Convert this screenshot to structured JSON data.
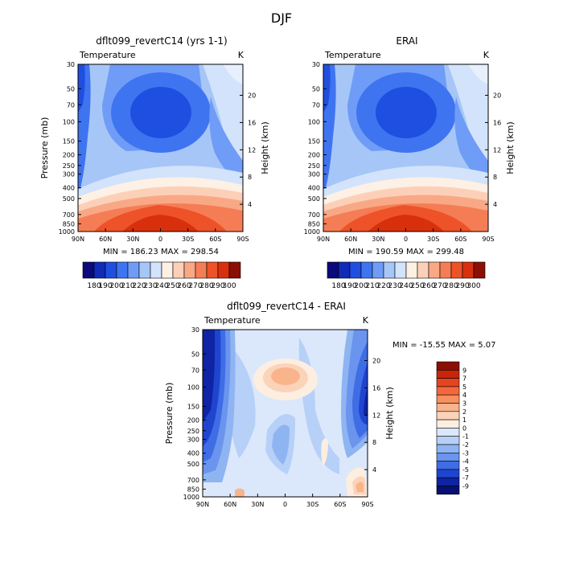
{
  "page": {
    "title": "DJF"
  },
  "chart_data": [
    {
      "type": "heatmap",
      "id": "model",
      "title": "dflt099_revertC14 (yrs 1-1)",
      "subtitle_left": "Temperature",
      "subtitle_right": "K",
      "xlabel": "",
      "ylabel": "Pressure (mb)",
      "ylabel_right": "Height (km)",
      "x_ticks": [
        "90N",
        "60N",
        "30N",
        "0",
        "30S",
        "60S",
        "90S"
      ],
      "y_ticks": [
        "30",
        "50",
        "70",
        "100",
        "150",
        "200",
        "250",
        "300",
        "400",
        "500",
        "700",
        "850",
        "1000"
      ],
      "y_ticks_right": [
        "20",
        "16",
        "12",
        "8",
        "4"
      ],
      "stats": "MIN = 186.23   MAX = 298.54",
      "min": 186.23,
      "max": 298.54,
      "colorbar": {
        "labels": [
          "180",
          "190",
          "200",
          "210",
          "220",
          "230",
          "240",
          "250",
          "260",
          "270",
          "280",
          "290",
          "300"
        ],
        "colors": [
          "#0a0a7a",
          "#0f2bb8",
          "#1f4fe0",
          "#3f74f0",
          "#6f9cf6",
          "#a6c6f8",
          "#d2e3fb",
          "#fdf0e4",
          "#fcd0b8",
          "#f9a886",
          "#f57d55",
          "#ee5228",
          "#d8300c",
          "#8b0f05"
        ]
      }
    },
    {
      "type": "heatmap",
      "id": "obs",
      "title": "ERAI",
      "subtitle_left": "Temperature",
      "subtitle_right": "K",
      "xlabel": "",
      "ylabel": "",
      "ylabel_right": "Height (km)",
      "x_ticks": [
        "90N",
        "60N",
        "30N",
        "0",
        "30S",
        "60S",
        "90S"
      ],
      "y_ticks": [
        "30",
        "50",
        "70",
        "100",
        "150",
        "200",
        "250",
        "300",
        "400",
        "500",
        "700",
        "850",
        "1000"
      ],
      "y_ticks_right": [
        "20",
        "16",
        "12",
        "8",
        "4"
      ],
      "stats": "MIN = 190.59   MAX = 299.48",
      "min": 190.59,
      "max": 299.48,
      "colorbar": {
        "labels": [
          "180",
          "190",
          "200",
          "210",
          "220",
          "230",
          "240",
          "250",
          "260",
          "270",
          "280",
          "290",
          "300"
        ],
        "colors": [
          "#0a0a7a",
          "#0f2bb8",
          "#1f4fe0",
          "#3f74f0",
          "#6f9cf6",
          "#a6c6f8",
          "#d2e3fb",
          "#fdf0e4",
          "#fcd0b8",
          "#f9a886",
          "#f57d55",
          "#ee5228",
          "#d8300c",
          "#8b0f05"
        ]
      }
    },
    {
      "type": "heatmap",
      "id": "diff",
      "title": "dflt099_revertC14 - ERAI",
      "subtitle_left": "Temperature",
      "subtitle_right": "K",
      "xlabel": "",
      "ylabel": "Pressure (mb)",
      "ylabel_right": "Height (km)",
      "x_ticks": [
        "90N",
        "60N",
        "30N",
        "0",
        "30S",
        "60S",
        "90S"
      ],
      "y_ticks": [
        "30",
        "50",
        "70",
        "100",
        "150",
        "200",
        "250",
        "300",
        "400",
        "500",
        "700",
        "850",
        "1000"
      ],
      "y_ticks_right": [
        "20",
        "16",
        "12",
        "8",
        "4"
      ],
      "stats": "MIN = -15.55   MAX =    5.07",
      "min": -15.55,
      "max": 5.07,
      "colorbar": {
        "labels": [
          "9",
          "7",
          "5",
          "4",
          "3",
          "2",
          "1",
          "0",
          "-1",
          "-2",
          "-3",
          "-4",
          "-5",
          "-7",
          "-9"
        ],
        "colors": [
          "#8b0f05",
          "#c8250a",
          "#e64420",
          "#f2683c",
          "#f7905f",
          "#f9b48c",
          "#fbd3b9",
          "#fdeee0",
          "#dbe8fb",
          "#b7d0f7",
          "#8fb4f2",
          "#6a94ee",
          "#3f6de6",
          "#1f45cf",
          "#0e24a5",
          "#071070"
        ]
      }
    }
  ]
}
